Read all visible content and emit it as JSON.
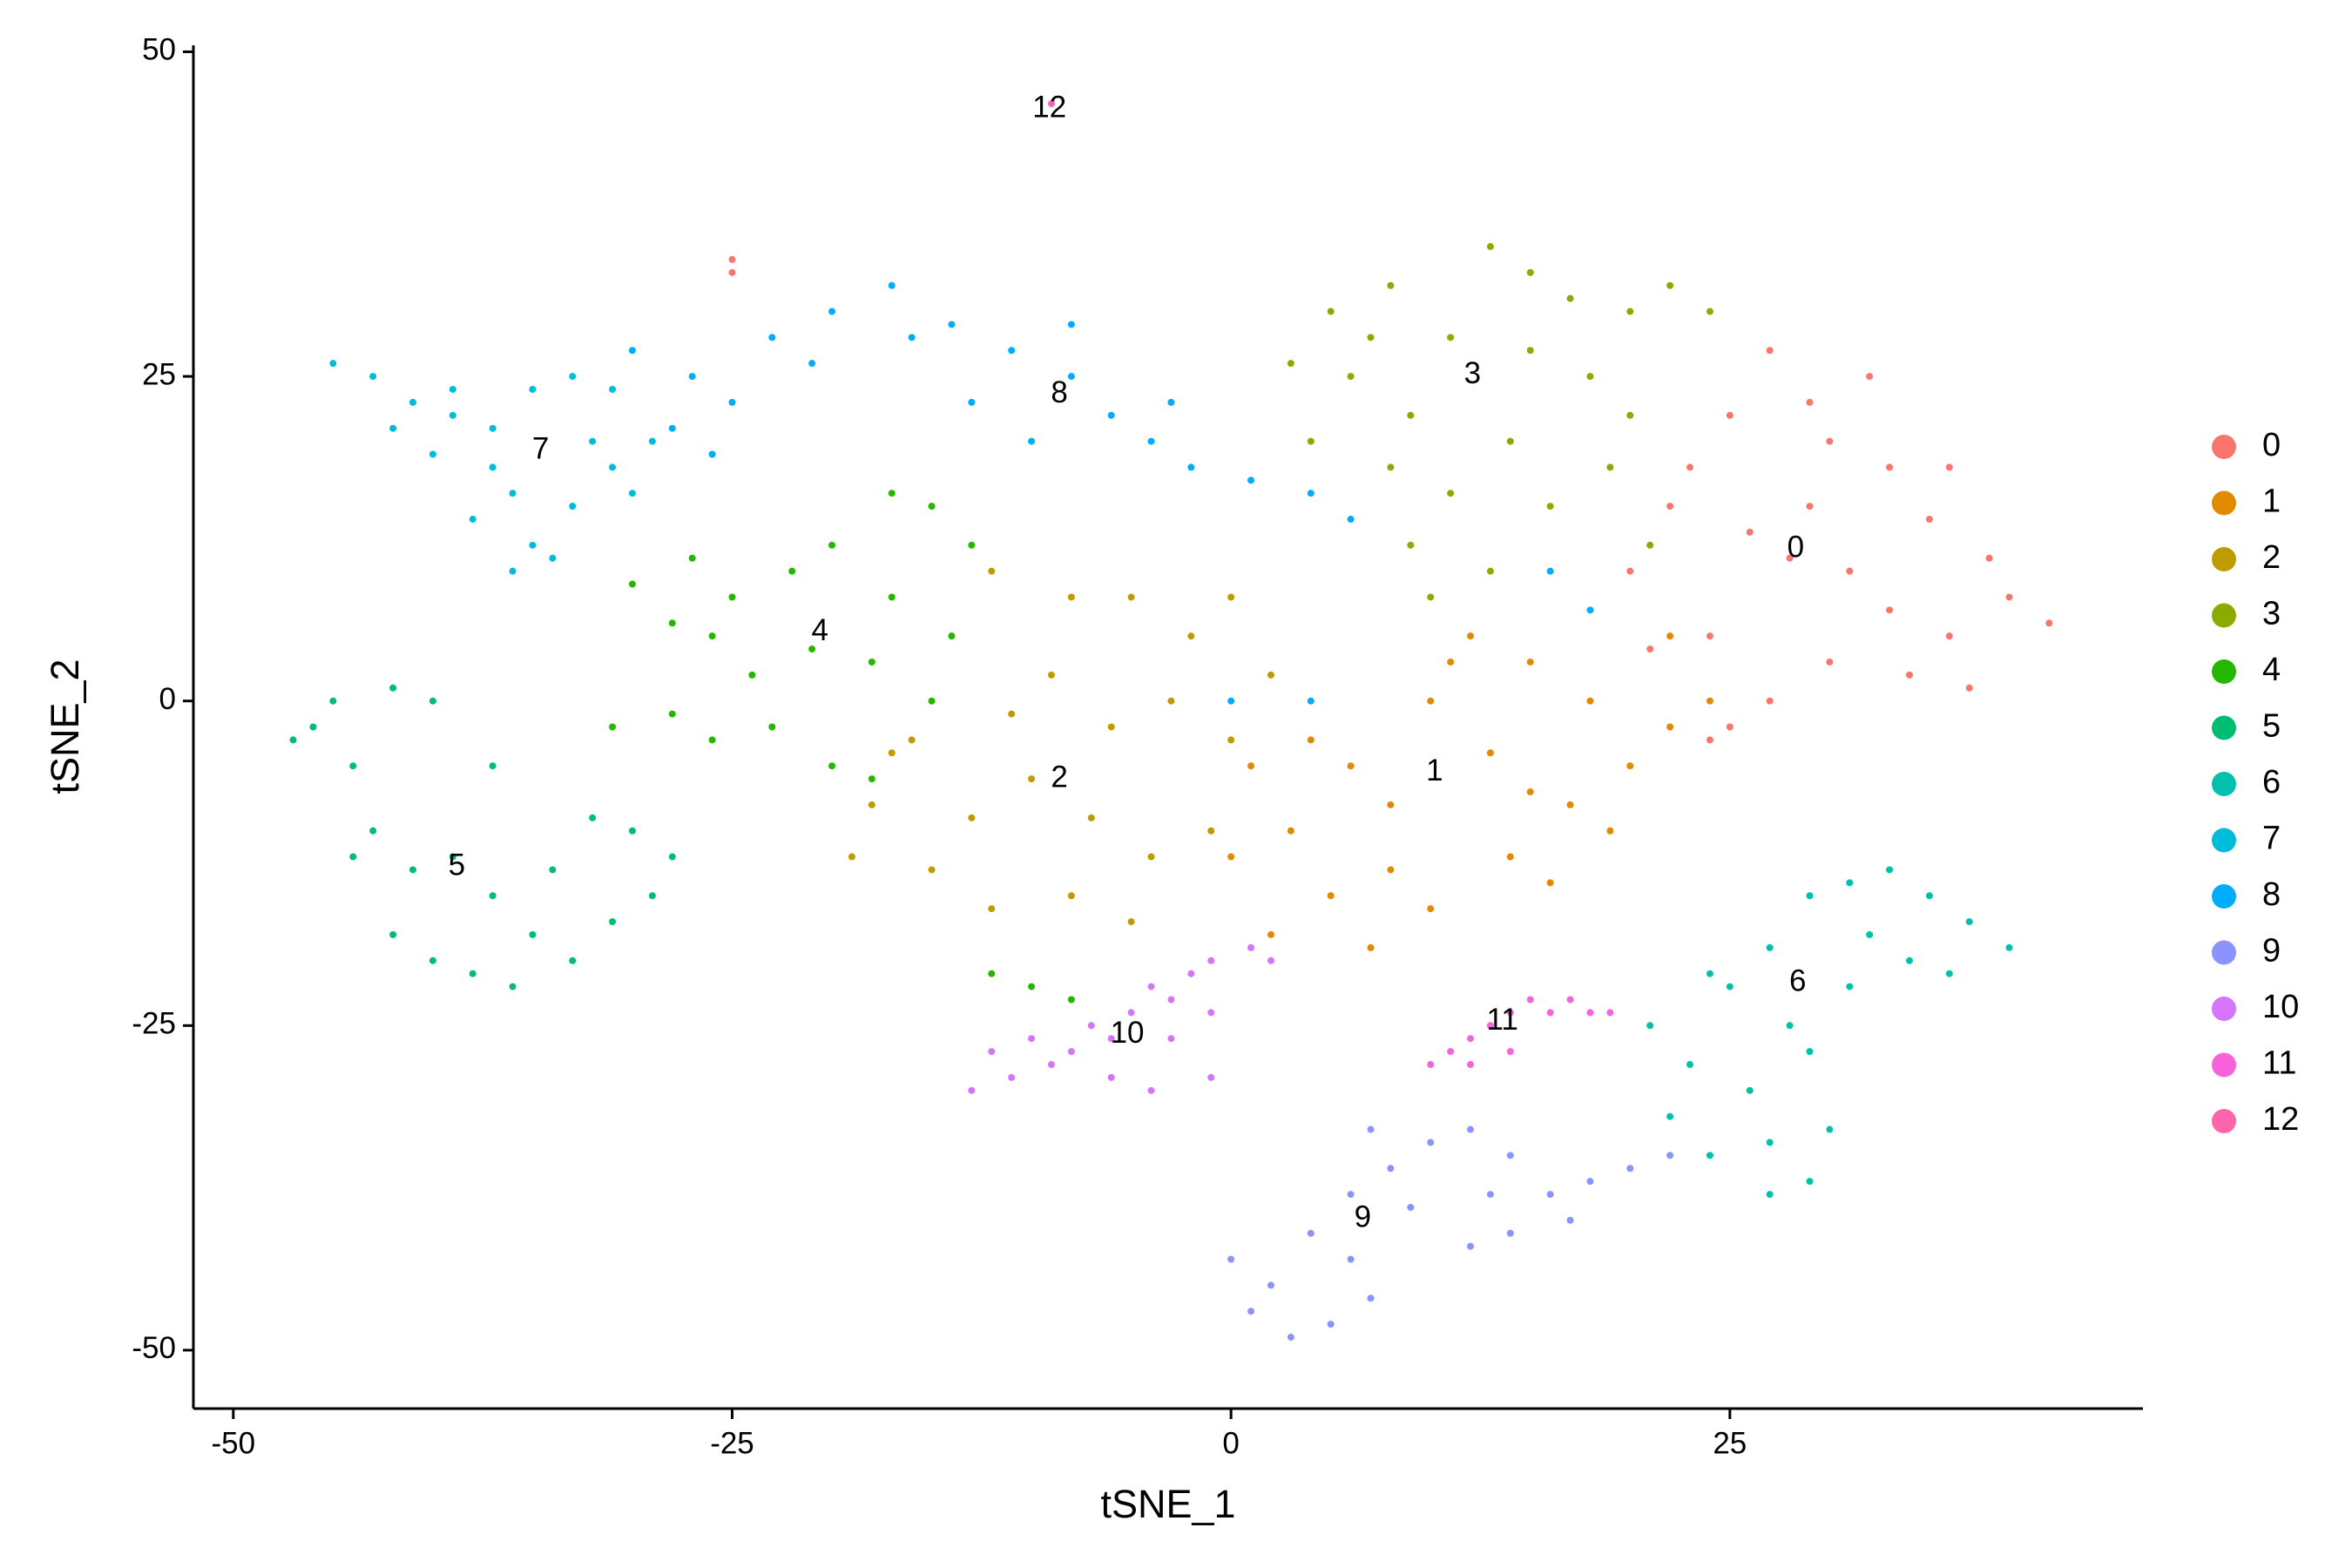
{
  "chart_data": {
    "type": "scatter",
    "x_label": "tSNE_1",
    "y_label": "tSNE_2",
    "xlim": [
      -52,
      45.7
    ],
    "ylim": [
      -54.5,
      50.5
    ],
    "xticks": [
      -50,
      -25,
      0,
      25
    ],
    "yticks": [
      -50,
      -25,
      0,
      25,
      50
    ],
    "grid": false,
    "legend": "right",
    "series": [
      {
        "name": "0",
        "color": "#F8766D",
        "x": [
          28,
          30,
          32,
          25,
          22,
          20,
          24,
          27,
          30,
          33,
          36,
          39,
          41,
          38,
          35,
          33,
          29,
          26,
          23,
          27,
          29,
          31,
          34,
          37,
          21,
          25,
          36,
          24,
          -25,
          -25
        ],
        "y": [
          11,
          20,
          25,
          22,
          15,
          10,
          5,
          0,
          3,
          7,
          5,
          8,
          6,
          11,
          14,
          18,
          15,
          13,
          18,
          27,
          23,
          10,
          2,
          1,
          4,
          -2,
          18,
          -3,
          33,
          34
        ]
      },
      {
        "name": "1",
        "color": "#E18A00",
        "x": [
          2,
          5,
          8,
          3,
          0,
          6,
          10,
          12,
          15,
          18,
          20,
          22,
          24,
          17,
          14,
          10,
          4,
          8,
          13,
          19,
          16,
          1,
          11,
          7,
          22,
          15
        ],
        "y": [
          -18,
          -15,
          -13,
          -10,
          -12,
          -5,
          0,
          5,
          3,
          0,
          -5,
          -2,
          0,
          -8,
          -12,
          -16,
          -3,
          -8,
          -4,
          -10,
          -14,
          -5,
          3,
          -19,
          5,
          -7
        ]
      },
      {
        "name": "2",
        "color": "#BE9C00",
        "x": [
          -10,
          -12,
          -8,
          -14,
          -5,
          -2,
          -16,
          -18,
          -19,
          -15,
          -12,
          -8,
          -4,
          -1,
          -6,
          -3,
          -9,
          -13,
          -7,
          0,
          -11,
          2,
          -5,
          -17,
          0
        ],
        "y": [
          -6,
          10,
          8,
          5,
          8,
          5,
          -3,
          -8,
          -12,
          -13,
          -16,
          -15,
          -12,
          -10,
          -2,
          0,
          2,
          -9,
          -9,
          -3,
          -1,
          2,
          -17,
          -4,
          8
        ]
      },
      {
        "name": "3",
        "color": "#8CAB00",
        "x": [
          3,
          5,
          8,
          6,
          4,
          9,
          11,
          13,
          15,
          17,
          20,
          22,
          24,
          18,
          14,
          11,
          9,
          13,
          16,
          19,
          21,
          8,
          7,
          15,
          10,
          20
        ],
        "y": [
          26,
          30,
          32,
          25,
          20,
          22,
          28,
          35,
          33,
          31,
          30,
          32,
          30,
          25,
          20,
          16,
          12,
          10,
          15,
          18,
          12,
          18,
          28,
          27,
          8,
          22
        ]
      },
      {
        "name": "4",
        "color": "#24B700",
        "x": [
          -30,
          -28,
          -25,
          -22,
          -20,
          -17,
          -15,
          -13,
          -14,
          -15,
          -18,
          -21,
          -24,
          -26,
          -23,
          -20,
          -31,
          -28,
          -26,
          -18,
          -17,
          -27,
          -10,
          -8,
          -12
        ],
        "y": [
          9,
          6,
          8,
          10,
          12,
          16,
          15,
          12,
          5,
          0,
          3,
          4,
          2,
          5,
          -2,
          -5,
          -2,
          -1,
          -3,
          -6,
          8,
          11,
          -22,
          -23,
          -21
        ]
      },
      {
        "name": "5",
        "color": "#00BE70",
        "x": [
          -47,
          -45,
          -42,
          -44,
          -46,
          -43,
          -41,
          -42,
          -40,
          -38,
          -36,
          -35,
          -33,
          -31,
          -29,
          -30,
          -32,
          -34,
          -37,
          -39,
          -37,
          -40,
          -28,
          -44
        ],
        "y": [
          -3,
          0,
          1,
          -5,
          -2,
          -10,
          -13,
          -18,
          -20,
          -21,
          -22,
          -18,
          -20,
          -17,
          -15,
          -10,
          -9,
          -13,
          -15,
          -12,
          -5,
          0,
          -12,
          -12
        ]
      },
      {
        "name": "6",
        "color": "#00C1AB",
        "x": [
          21,
          23,
          25,
          27,
          29,
          31,
          33,
          35,
          37,
          39,
          34,
          31,
          28,
          26,
          22,
          24,
          27,
          29,
          30,
          27,
          24,
          32,
          36,
          29
        ],
        "y": [
          -25,
          -28,
          -22,
          -19,
          -15,
          -14,
          -13,
          -15,
          -17,
          -19,
          -20,
          -22,
          -25,
          -30,
          -32,
          -35,
          -38,
          -37,
          -33,
          -34,
          -21,
          -18,
          -21,
          -27
        ]
      },
      {
        "name": "7",
        "color": "#00BBDA",
        "x": [
          -45,
          -43,
          -41,
          -39,
          -37,
          -35,
          -33,
          -31,
          -29,
          -31,
          -33,
          -35,
          -36,
          -34,
          -38,
          -37,
          -40,
          -42,
          -32,
          -30,
          -36,
          -39
        ],
        "y": [
          26,
          25,
          23,
          22,
          21,
          24,
          25,
          24,
          20,
          18,
          15,
          12,
          10,
          11,
          14,
          18,
          19,
          21,
          20,
          16,
          16,
          24
        ]
      },
      {
        "name": "8",
        "color": "#00ACFC",
        "x": [
          -30,
          -27,
          -25,
          -23,
          -20,
          -17,
          -14,
          -11,
          -8,
          -6,
          -4,
          -2,
          1,
          4,
          6,
          -10,
          -13,
          -16,
          -21,
          -26,
          -28,
          -8,
          -3,
          0,
          4,
          16,
          18
        ],
        "y": [
          27,
          25,
          23,
          28,
          30,
          32,
          29,
          27,
          25,
          22,
          20,
          18,
          17,
          16,
          14,
          20,
          23,
          28,
          26,
          19,
          21,
          29,
          23,
          0,
          0,
          10,
          7
        ]
      },
      {
        "name": "9",
        "color": "#8B93FF",
        "x": [
          0,
          1,
          3,
          5,
          7,
          6,
          4,
          6,
          8,
          10,
          12,
          14,
          16,
          18,
          20,
          22,
          17,
          14,
          12,
          9,
          2,
          13,
          7
        ],
        "y": [
          -43,
          -47,
          -49,
          -48,
          -46,
          -43,
          -41,
          -38,
          -36,
          -34,
          -33,
          -35,
          -38,
          -37,
          -36,
          -35,
          -40,
          -41,
          -42,
          -39,
          -45,
          -38,
          -33
        ]
      },
      {
        "name": "10",
        "color": "#D575FE",
        "x": [
          -12,
          -11,
          -10,
          -9,
          -8,
          -7,
          -6,
          -5,
          -4,
          -3,
          -2,
          -1,
          1,
          2,
          -1,
          -4,
          -6,
          -13,
          -3,
          -1
        ],
        "y": [
          -27,
          -29,
          -26,
          -28,
          -27,
          -25,
          -26,
          -24,
          -22,
          -23,
          -21,
          -20,
          -19,
          -20,
          -29,
          -30,
          -29,
          -30,
          -26,
          -24
        ]
      },
      {
        "name": "11",
        "color": "#F962DD",
        "x": [
          10,
          11,
          12,
          13,
          14,
          15,
          16,
          17,
          18,
          19,
          14,
          12
        ],
        "y": [
          -28,
          -27,
          -26,
          -25,
          -24,
          -23,
          -24,
          -23,
          -24,
          -24,
          -27,
          -28
        ]
      },
      {
        "name": "12",
        "color": "#FF65AC",
        "x": [
          -9
        ],
        "y": [
          46
        ]
      }
    ],
    "annotations": [
      {
        "text": "0",
        "x": 28.3,
        "y": 11.7
      },
      {
        "text": "1",
        "x": 10.2,
        "y": -5.5
      },
      {
        "text": "2",
        "x": -8.6,
        "y": -6
      },
      {
        "text": "3",
        "x": 12.1,
        "y": 25.1
      },
      {
        "text": "4",
        "x": -20.6,
        "y": 5.3
      },
      {
        "text": "5",
        "x": -38.8,
        "y": -12.8
      },
      {
        "text": "6",
        "x": 28.4,
        "y": -21.7
      },
      {
        "text": "7",
        "x": -34.6,
        "y": 19.3
      },
      {
        "text": "8",
        "x": -8.6,
        "y": 23.6
      },
      {
        "text": "9",
        "x": 6.6,
        "y": -39.9
      },
      {
        "text": "10",
        "x": -5.2,
        "y": -25.7
      },
      {
        "text": "11",
        "x": 13.6,
        "y": -24.7
      },
      {
        "text": "12",
        "x": -9.1,
        "y": 45.6
      }
    ]
  }
}
